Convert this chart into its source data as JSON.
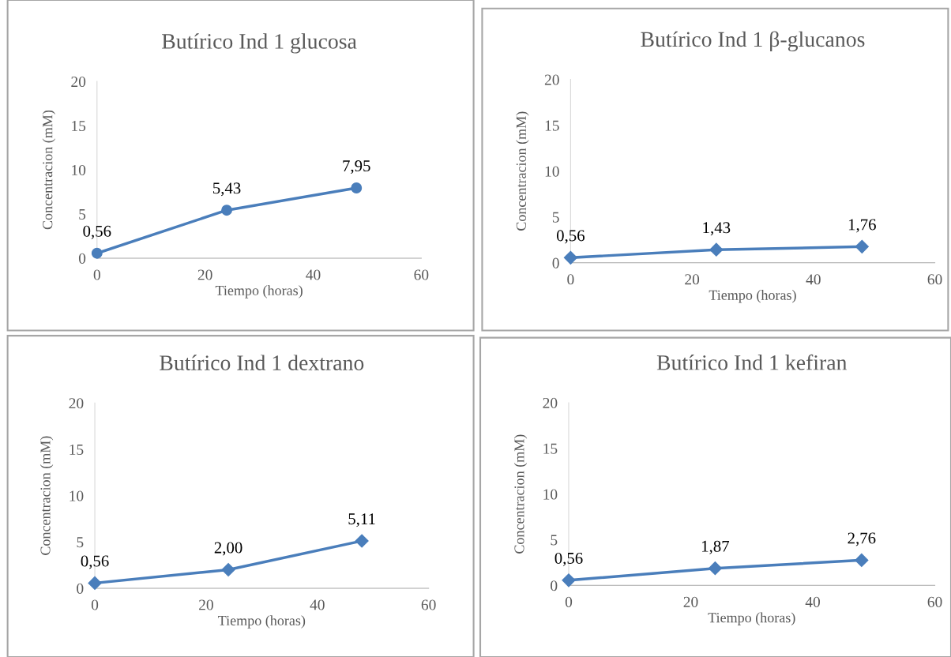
{
  "chart_data": [
    {
      "type": "line",
      "title": "Butírico Ind 1 glucosa",
      "xlabel": "Tiempo (horas)",
      "ylabel": "Concentracion (mM)",
      "x": [
        0,
        24,
        48
      ],
      "series": [
        {
          "color": "#4a7ebb",
          "values": [
            0.56,
            5.43,
            7.95
          ],
          "value_labels": [
            "0,56",
            "5,43",
            "7,95"
          ]
        }
      ],
      "marker": "circle",
      "xlim": [
        0,
        60
      ],
      "xticks": [
        0,
        20,
        40,
        60
      ],
      "ylim": [
        0,
        20
      ],
      "yticks": [
        0,
        5,
        10,
        15,
        20
      ],
      "grid": false,
      "legend": false
    },
    {
      "type": "line",
      "title": "Butírico Ind 1 β-glucanos",
      "xlabel": "Tiempo (horas)",
      "ylabel": "Concentracion (mM)",
      "x": [
        0,
        24,
        48
      ],
      "series": [
        {
          "color": "#4a7ebb",
          "values": [
            0.56,
            1.43,
            1.76
          ],
          "value_labels": [
            "0,56",
            "1,43",
            "1,76"
          ]
        }
      ],
      "marker": "diamond",
      "xlim": [
        0,
        60
      ],
      "xticks": [
        0,
        20,
        40,
        60
      ],
      "ylim": [
        0,
        20
      ],
      "yticks": [
        0,
        5,
        10,
        15,
        20
      ],
      "grid": false,
      "legend": false
    },
    {
      "type": "line",
      "title": "Butírico Ind 1 dextrano",
      "xlabel": "Tiempo (horas)",
      "ylabel": "Concentracion (mM)",
      "x": [
        0,
        24,
        48
      ],
      "series": [
        {
          "color": "#4a7ebb",
          "values": [
            0.56,
            2.0,
            5.11
          ],
          "value_labels": [
            "0,56",
            "2,00",
            "5,11"
          ]
        }
      ],
      "marker": "diamond",
      "xlim": [
        0,
        60
      ],
      "xticks": [
        0,
        20,
        40,
        60
      ],
      "ylim": [
        0,
        20
      ],
      "yticks": [
        0,
        5,
        10,
        15,
        20
      ],
      "grid": false,
      "legend": false
    },
    {
      "type": "line",
      "title": "Butírico Ind 1 kefiran",
      "xlabel": "Tiempo (horas)",
      "ylabel": "Concentracion (mM)",
      "x": [
        0,
        24,
        48
      ],
      "series": [
        {
          "color": "#4a7ebb",
          "values": [
            0.56,
            1.87,
            2.76
          ],
          "value_labels": [
            "0,56",
            "1,87",
            "2,76"
          ]
        }
      ],
      "marker": "diamond",
      "xlim": [
        0,
        60
      ],
      "xticks": [
        0,
        20,
        40,
        60
      ],
      "ylim": [
        0,
        20
      ],
      "yticks": [
        0,
        5,
        10,
        15,
        20
      ],
      "grid": false,
      "legend": false
    }
  ]
}
